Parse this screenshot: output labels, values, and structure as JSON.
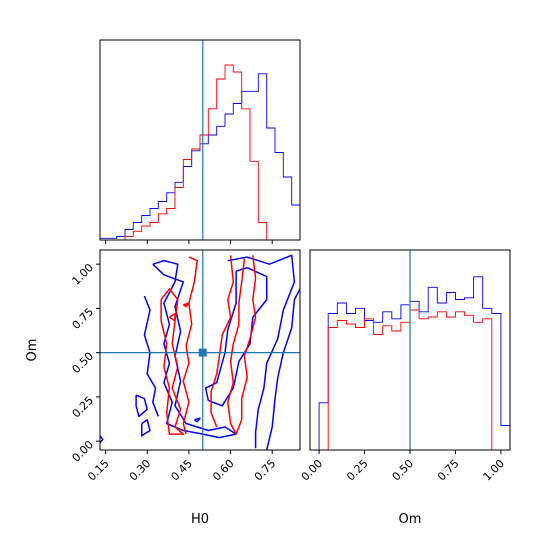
{
  "colors": {
    "series_a": "#0000ff",
    "series_b": "#ff0000",
    "truth": "#1f77b4"
  },
  "chart_data": [
    {
      "id": "h0-marginal",
      "type": "histogram",
      "panel": "top-left",
      "xlabel": "",
      "ylabel": "",
      "xlim": [
        0.13,
        0.85
      ],
      "truth_x": 0.5,
      "bin_edges": [
        0.13,
        0.16,
        0.19,
        0.22,
        0.25,
        0.28,
        0.31,
        0.34,
        0.37,
        0.4,
        0.43,
        0.46,
        0.49,
        0.52,
        0.55,
        0.58,
        0.61,
        0.64,
        0.67,
        0.7,
        0.73,
        0.76,
        0.79,
        0.82,
        0.85
      ],
      "series": [
        {
          "color": "series_a",
          "counts": [
            0.01,
            0.01,
            0.02,
            0.06,
            0.1,
            0.14,
            0.18,
            0.22,
            0.27,
            0.33,
            0.42,
            0.51,
            0.55,
            0.6,
            0.65,
            0.72,
            0.78,
            0.85,
            0.85,
            0.95,
            0.64,
            0.5,
            0.36,
            0.2
          ]
        },
        {
          "color": "series_b",
          "counts": [
            0.0,
            0.0,
            0.0,
            0.02,
            0.05,
            0.08,
            0.1,
            0.15,
            0.18,
            0.3,
            0.46,
            0.52,
            0.6,
            0.75,
            0.92,
            1.0,
            0.96,
            0.75,
            0.45,
            0.1,
            0.0,
            0.0,
            0.0,
            0.0
          ]
        }
      ]
    },
    {
      "id": "h0-om-joint",
      "type": "contour",
      "panel": "bottom-left",
      "xlabel": "H0",
      "ylabel": "Om",
      "xlim": [
        0.13,
        0.85
      ],
      "ylim": [
        -0.05,
        1.08
      ],
      "xticks": [
        "0.15",
        "0.30",
        "0.45",
        "0.60",
        "0.75"
      ],
      "xtick_values": [
        0.15,
        0.3,
        0.45,
        0.6,
        0.75
      ],
      "yticks": [
        "0.00",
        "0.25",
        "0.50",
        "0.75",
        "1.00"
      ],
      "ytick_values": [
        0.0,
        0.25,
        0.5,
        0.75,
        1.0
      ],
      "truth": {
        "x": 0.5,
        "y": 0.5
      },
      "contours": [
        {
          "color": "series_a",
          "points": [
            [
              0.32,
              1.0
            ],
            [
              0.36,
              1.02
            ],
            [
              0.41,
              1.0
            ],
            [
              0.4,
              0.9
            ],
            [
              0.36,
              0.78
            ],
            [
              0.38,
              0.66
            ],
            [
              0.36,
              0.55
            ],
            [
              0.38,
              0.44
            ],
            [
              0.36,
              0.33
            ],
            [
              0.39,
              0.22
            ],
            [
              0.37,
              0.1
            ],
            [
              0.43,
              0.06
            ],
            [
              0.5,
              0.04
            ],
            [
              0.56,
              0.02
            ],
            [
              0.62,
              0.04
            ],
            [
              0.58,
              0.08
            ],
            [
              0.52,
              0.06
            ],
            [
              0.44,
              0.1
            ],
            [
              0.4,
              0.2
            ],
            [
              0.42,
              0.34
            ],
            [
              0.4,
              0.48
            ],
            [
              0.42,
              0.62
            ],
            [
              0.4,
              0.76
            ],
            [
              0.43,
              0.9
            ],
            [
              0.36,
              0.94
            ],
            [
              0.32,
              1.0
            ]
          ]
        },
        {
          "color": "series_a",
          "points": [
            [
              0.59,
              1.02
            ],
            [
              0.66,
              1.04
            ],
            [
              0.74,
              1.0
            ],
            [
              0.82,
              1.05
            ],
            [
              0.83,
              0.9
            ],
            [
              0.79,
              0.74
            ],
            [
              0.77,
              0.58
            ],
            [
              0.73,
              0.44
            ],
            [
              0.72,
              0.3
            ],
            [
              0.7,
              0.18
            ],
            [
              0.69,
              0.05
            ],
            [
              0.69,
              -0.04
            ]
          ]
        },
        {
          "color": "series_a",
          "points": [
            [
              0.62,
              0.96
            ],
            [
              0.66,
              0.98
            ],
            [
              0.73,
              0.93
            ],
            [
              0.73,
              0.8
            ],
            [
              0.68,
              0.7
            ],
            [
              0.67,
              0.55
            ],
            [
              0.63,
              0.45
            ],
            [
              0.61,
              0.3
            ],
            [
              0.57,
              0.2
            ],
            [
              0.52,
              0.23
            ],
            [
              0.51,
              0.3
            ],
            [
              0.55,
              0.33
            ],
            [
              0.58,
              0.5
            ],
            [
              0.59,
              0.63
            ],
            [
              0.62,
              0.78
            ],
            [
              0.62,
              0.96
            ]
          ]
        },
        {
          "color": "series_a",
          "points": [
            [
              0.85,
              0.86
            ],
            [
              0.83,
              0.8
            ],
            [
              0.82,
              0.64
            ],
            [
              0.79,
              0.5
            ],
            [
              0.77,
              0.36
            ],
            [
              0.76,
              0.24
            ],
            [
              0.75,
              0.08
            ],
            [
              0.73,
              -0.05
            ]
          ]
        },
        {
          "color": "series_a",
          "points": [
            [
              0.29,
              0.82
            ],
            [
              0.31,
              0.74
            ],
            [
              0.29,
              0.6
            ],
            [
              0.31,
              0.5
            ],
            [
              0.3,
              0.38
            ],
            [
              0.33,
              0.3
            ],
            [
              0.32,
              0.22
            ],
            [
              0.34,
              0.14
            ]
          ]
        },
        {
          "color": "series_a",
          "points": [
            [
              0.26,
              0.26
            ],
            [
              0.29,
              0.24
            ],
            [
              0.3,
              0.18
            ],
            [
              0.27,
              0.14
            ],
            [
              0.26,
              0.2
            ],
            [
              0.26,
              0.26
            ]
          ]
        },
        {
          "color": "series_a",
          "points": [
            [
              0.28,
              0.1
            ],
            [
              0.3,
              0.12
            ],
            [
              0.31,
              0.06
            ],
            [
              0.28,
              0.03
            ],
            [
              0.28,
              0.1
            ]
          ]
        },
        {
          "color": "series_a",
          "points": [
            [
              0.13,
              0.03
            ],
            [
              0.14,
              0.01
            ],
            [
              0.13,
              -0.01
            ]
          ]
        },
        {
          "color": "series_a",
          "points": [
            [
              0.47,
              0.12
            ],
            [
              0.49,
              0.13
            ],
            [
              0.48,
              0.11
            ],
            [
              0.47,
              0.12
            ]
          ]
        },
        {
          "color": "series_b",
          "points": [
            [
              0.35,
              0.8
            ],
            [
              0.38,
              0.86
            ],
            [
              0.41,
              0.8
            ],
            [
              0.4,
              0.68
            ],
            [
              0.39,
              0.55
            ],
            [
              0.41,
              0.42
            ],
            [
              0.39,
              0.3
            ],
            [
              0.42,
              0.18
            ],
            [
              0.4,
              0.08
            ],
            [
              0.43,
              0.04
            ],
            [
              0.38,
              0.04
            ],
            [
              0.37,
              0.16
            ],
            [
              0.38,
              0.3
            ],
            [
              0.36,
              0.42
            ],
            [
              0.37,
              0.55
            ],
            [
              0.35,
              0.68
            ],
            [
              0.35,
              0.8
            ]
          ]
        },
        {
          "color": "series_b",
          "points": [
            [
              0.45,
              1.04
            ],
            [
              0.48,
              1.02
            ],
            [
              0.47,
              0.9
            ],
            [
              0.45,
              0.78
            ],
            [
              0.46,
              0.66
            ],
            [
              0.44,
              0.54
            ],
            [
              0.45,
              0.44
            ],
            [
              0.43,
              0.34
            ],
            [
              0.45,
              0.22
            ],
            [
              0.43,
              0.1
            ],
            [
              0.44,
              0.04
            ]
          ]
        },
        {
          "color": "series_b",
          "points": [
            [
              0.6,
              1.05
            ],
            [
              0.61,
              0.9
            ],
            [
              0.59,
              0.8
            ],
            [
              0.6,
              0.7
            ],
            [
              0.57,
              0.6
            ],
            [
              0.56,
              0.48
            ],
            [
              0.55,
              0.38
            ],
            [
              0.53,
              0.28
            ],
            [
              0.53,
              0.16
            ],
            [
              0.55,
              0.08
            ]
          ]
        },
        {
          "color": "series_b",
          "points": [
            [
              0.65,
              1.03
            ],
            [
              0.64,
              0.9
            ],
            [
              0.63,
              0.78
            ],
            [
              0.63,
              0.66
            ],
            [
              0.61,
              0.55
            ],
            [
              0.6,
              0.45
            ],
            [
              0.61,
              0.33
            ],
            [
              0.59,
              0.22
            ],
            [
              0.6,
              0.1
            ],
            [
              0.62,
              0.04
            ]
          ]
        },
        {
          "color": "series_b",
          "points": [
            [
              0.68,
              1.05
            ],
            [
              0.69,
              0.92
            ],
            [
              0.68,
              0.8
            ],
            [
              0.69,
              0.7
            ],
            [
              0.67,
              0.58
            ],
            [
              0.65,
              0.48
            ],
            [
              0.66,
              0.36
            ],
            [
              0.64,
              0.24
            ],
            [
              0.64,
              0.12
            ],
            [
              0.62,
              0.04
            ]
          ]
        },
        {
          "color": "series_b",
          "points": [
            [
              0.43,
              0.77
            ],
            [
              0.45,
              0.78
            ],
            [
              0.44,
              0.76
            ],
            [
              0.43,
              0.77
            ]
          ]
        },
        {
          "color": "series_b",
          "points": [
            [
              0.38,
              0.7
            ],
            [
              0.4,
              0.72
            ],
            [
              0.4,
              0.68
            ],
            [
              0.38,
              0.7
            ]
          ]
        }
      ]
    },
    {
      "id": "om-marginal",
      "type": "histogram",
      "panel": "bottom-right",
      "xlabel": "Om",
      "ylabel": "",
      "xlim": [
        -0.05,
        1.05
      ],
      "truth_x": 0.5,
      "xticks": [
        "0.00",
        "0.25",
        "0.50",
        "0.75",
        "1.00"
      ],
      "xtick_values": [
        0.0,
        0.25,
        0.5,
        0.75,
        1.0
      ],
      "bin_edges": [
        -0.05,
        0.0,
        0.05,
        0.1,
        0.15,
        0.2,
        0.25,
        0.3,
        0.35,
        0.4,
        0.45,
        0.5,
        0.55,
        0.6,
        0.65,
        0.7,
        0.75,
        0.8,
        0.85,
        0.9,
        0.95,
        1.0,
        1.05
      ],
      "series": [
        {
          "color": "series_a",
          "counts": [
            0.0,
            0.27,
            0.78,
            0.84,
            0.78,
            0.81,
            0.74,
            0.73,
            0.79,
            0.75,
            0.83,
            0.85,
            0.79,
            0.93,
            0.84,
            0.9,
            0.86,
            0.87,
            0.99,
            0.81,
            0.78,
            0.14
          ]
        },
        {
          "color": "series_b",
          "counts": [
            0.0,
            0.0,
            0.7,
            0.74,
            0.72,
            0.7,
            0.75,
            0.66,
            0.71,
            0.68,
            0.73,
            0.8,
            0.75,
            0.76,
            0.79,
            0.76,
            0.79,
            0.77,
            0.73,
            0.75,
            0.0,
            0.0
          ]
        }
      ]
    }
  ]
}
